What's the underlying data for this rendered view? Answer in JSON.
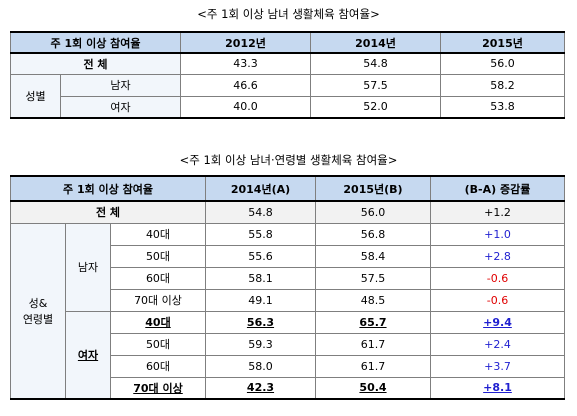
{
  "table1": {
    "title": "<주 1회 이상 남녀 생활체육 참여율>",
    "header": {
      "label": "주 1회 이상 참여율",
      "columns": [
        "2012년",
        "2014년",
        "2015년"
      ]
    },
    "total": {
      "label": "전    체",
      "values": [
        "43.3",
        "54.8",
        "56.0"
      ]
    },
    "group": {
      "label": "성별",
      "rows": [
        {
          "label": "남자",
          "values": [
            "46.6",
            "57.5",
            "58.2"
          ]
        },
        {
          "label": "여자",
          "values": [
            "40.0",
            "52.0",
            "53.8"
          ]
        }
      ]
    }
  },
  "table2": {
    "title": "<주 1회 이상 남녀·연령별 생활체육 참여율>",
    "header": {
      "label": "주 1회 이상 참여율",
      "columns": [
        "2014년(A)",
        "2015년(B)",
        "(B-A) 증감률"
      ]
    },
    "total": {
      "label": "전    체",
      "values": [
        "54.8",
        "56.0",
        "+1.2"
      ]
    },
    "group": {
      "label": "성&\n연령별",
      "subgroups": [
        {
          "label": "남자",
          "rows": [
            {
              "label": "40대",
              "values": [
                "55.8",
                "56.8",
                "+1.0"
              ]
            },
            {
              "label": "50대",
              "values": [
                "55.6",
                "58.4",
                "+2.8"
              ]
            },
            {
              "label": "60대",
              "values": [
                "58.1",
                "57.5",
                "-0.6"
              ]
            },
            {
              "label": "70대 이상",
              "values": [
                "49.1",
                "48.5",
                "-0.6"
              ]
            }
          ]
        },
        {
          "label": "여자",
          "rows": [
            {
              "label": "40대",
              "values": [
                "56.3",
                "65.7",
                "+9.4"
              ],
              "emphasis": true
            },
            {
              "label": "50대",
              "values": [
                "59.3",
                "61.7",
                "+2.4"
              ]
            },
            {
              "label": "60대",
              "values": [
                "58.0",
                "61.7",
                "+3.7"
              ]
            },
            {
              "label": "70대 이상",
              "values": [
                "42.3",
                "50.4",
                "+8.1"
              ],
              "emphasis": true
            }
          ]
        }
      ]
    }
  }
}
